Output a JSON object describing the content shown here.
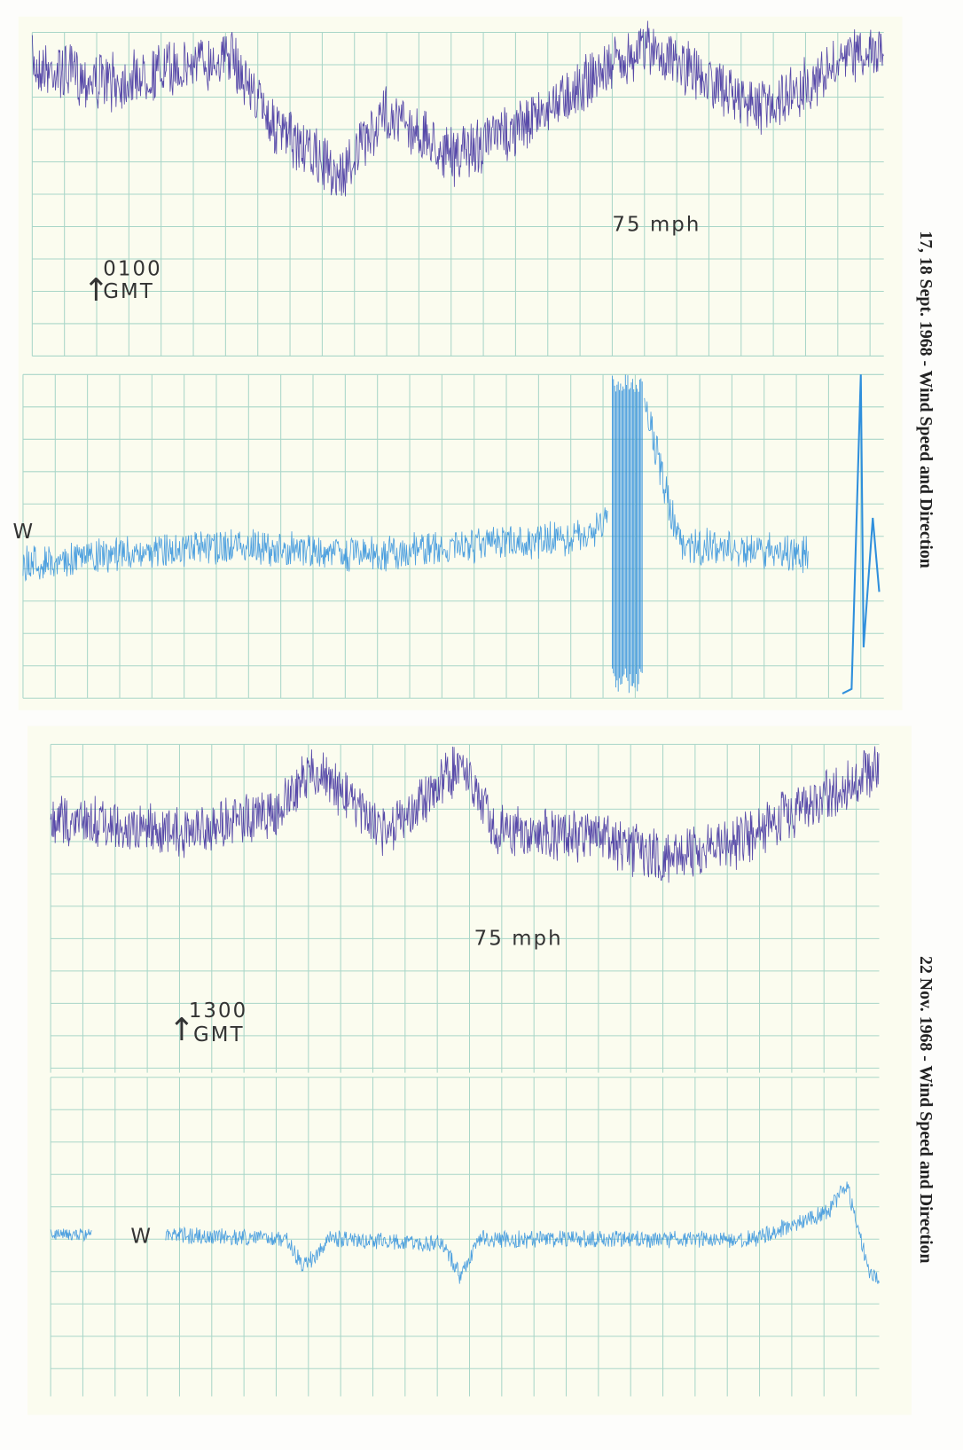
{
  "panels": [
    {
      "caption": "17, 18 Sept. 1968 - Wind Speed and Direction",
      "speed_label": "75 mph",
      "time_label": [
        "0100",
        "GMT"
      ],
      "direction_label": "W"
    },
    {
      "caption": "22 Nov. 1968 - Wind Speed and Direction",
      "speed_label": "75 mph",
      "time_label": [
        "1300",
        "GMT"
      ],
      "direction_label": "W"
    }
  ]
}
